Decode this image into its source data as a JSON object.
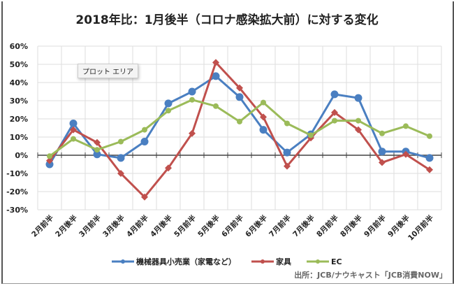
{
  "chart_data": {
    "type": "line",
    "title": "2018年比：1月後半（コロナ感染拡大前）に対する変化",
    "categories": [
      "2月前半",
      "2月後半",
      "3月前半",
      "3月後半",
      "4月前半",
      "4月後半",
      "5月前半",
      "5月後半",
      "6月前半",
      "6月後半",
      "7月前半",
      "7月後半",
      "8月前半",
      "8月後半",
      "9月前半",
      "9月後半",
      "10月前半"
    ],
    "ylim": [
      -30,
      60
    ],
    "yticks": [
      "60%",
      "50%",
      "40%",
      "30%",
      "20%",
      "10%",
      "0%",
      "-10%",
      "-20%",
      "-30%"
    ],
    "grid": true,
    "legend_placement": "bottom",
    "series": [
      {
        "name": "機械器具小売業（家電など）",
        "color": "#4a7fc1",
        "marker": "circle",
        "values": [
          -5,
          17.5,
          0.5,
          -1.5,
          7.5,
          28.5,
          35,
          43.5,
          32,
          14,
          1.5,
          11.5,
          33.5,
          31.5,
          2,
          2,
          -1.5
        ]
      },
      {
        "name": "家具",
        "color": "#c0504d",
        "marker": "diamond",
        "values": [
          -3,
          14,
          7,
          -10,
          -23,
          -7,
          12,
          51,
          37,
          21,
          -6,
          9.5,
          23.5,
          14,
          -4,
          0.5,
          -8
        ]
      },
      {
        "name": "EC",
        "color": "#9bbb59",
        "marker": "circle-small",
        "values": [
          -0.5,
          9,
          3,
          7.5,
          14,
          24.5,
          30.5,
          27,
          18.5,
          29,
          17.5,
          11,
          19,
          19,
          12,
          16,
          10.5
        ]
      }
    ]
  },
  "tooltip": "プロット エリア",
  "source": "出所：JCB/ナウキャスト「JCB消費NOW」"
}
